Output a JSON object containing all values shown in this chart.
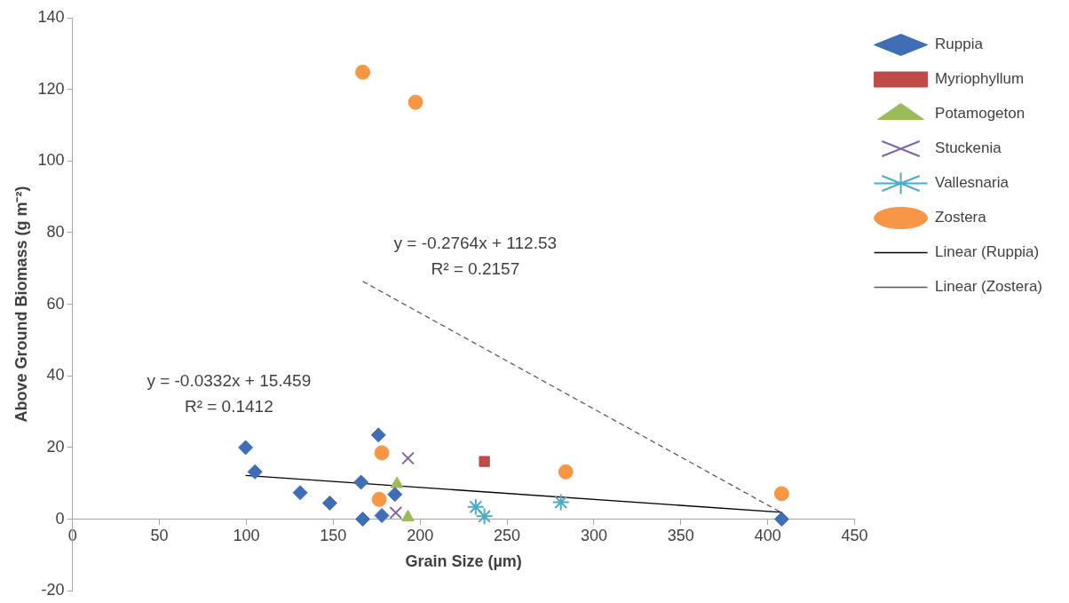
{
  "chart_data": {
    "type": "scatter",
    "xlabel": "Grain Size (µm)",
    "ylabel": "Above Ground Biomass (g m⁻²)",
    "xlim": [
      0,
      450
    ],
    "xticks": [
      0,
      50,
      100,
      150,
      200,
      250,
      300,
      350,
      400,
      450
    ],
    "ylim": [
      -20,
      140
    ],
    "yticks": [
      -20,
      0,
      20,
      40,
      60,
      80,
      100,
      120,
      140
    ],
    "grid": false,
    "legend": "right",
    "series": [
      {
        "name": "Ruppia",
        "color": "#3f6eb5",
        "marker": "diamond",
        "x": [
          99.6,
          105,
          131,
          148,
          166,
          167,
          176,
          178,
          185.5,
          408
        ],
        "values": [
          20,
          13.2,
          7.4,
          4.5,
          10.3,
          0,
          23.5,
          1,
          6.9,
          0
        ]
      },
      {
        "name": "Myriophyllum",
        "color": "#be4b48",
        "marker": "square",
        "x": [
          237
        ],
        "values": [
          16.1
        ]
      },
      {
        "name": "Potamogeton",
        "color": "#9bbb59",
        "marker": "triangle",
        "x": [
          186.7,
          193
        ],
        "values": [
          9.8,
          0.5
        ]
      },
      {
        "name": "Stuckenia",
        "color": "#8064a2",
        "marker": "cross",
        "x": [
          193,
          186
        ],
        "values": [
          17,
          1.8
        ]
      },
      {
        "name": "Vallesnaria",
        "color": "#4bacc6",
        "x": [
          232,
          237,
          281
        ],
        "values": [
          3.4,
          0.8,
          4.7
        ]
      },
      {
        "name": "Zostera",
        "color": "#f79646",
        "marker": "circle",
        "x": [
          178,
          176.5,
          167,
          197.4,
          283.8,
          408
        ],
        "values": [
          18.5,
          5.5,
          124.8,
          116.4,
          13.2,
          7.1
        ]
      },
      {
        "name": "Linear (Ruppia)",
        "type": "line",
        "color": "#000000",
        "marker": "none",
        "line_style": "solid",
        "x": [
          99.6,
          408
        ],
        "values": [
          12.2,
          1.9
        ]
      },
      {
        "name": "Linear (Zostera)",
        "type": "line",
        "color": "#595959",
        "marker": "none",
        "line_style": "dashed",
        "x": [
          167,
          408
        ],
        "values": [
          66.4,
          1.8
        ]
      }
    ],
    "annotations": [
      "y = -0.0332x + 15.459",
      "R² = 0.1412",
      "y = -0.2764x + 112.53",
      "R² = 0.2157"
    ]
  }
}
